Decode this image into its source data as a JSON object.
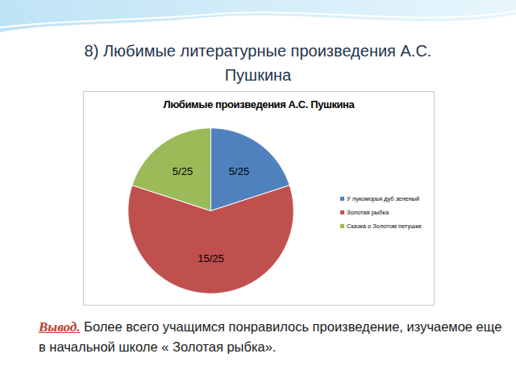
{
  "heading": "8) Любимые литературные произведения А.С. Пушкина",
  "conclusion": {
    "label": "Вывод.",
    "text": "Более всего учащимся понравилось произведение, изучаемое еще в начальной школе « Золотая рыбка»."
  },
  "chart_data": {
    "type": "pie",
    "title": "Любимые произведения А.С. Пушкина",
    "categories": [
      "У лукоморья дуб зеленый",
      "Золотая рыбка",
      "Сказка о Золотом петушке"
    ],
    "values": [
      5,
      15,
      5
    ],
    "value_labels": [
      "5/25",
      "15/25",
      "5/25"
    ],
    "colors": [
      "#4f81bd",
      "#c0504d",
      "#9bbb59"
    ],
    "data_labels": true,
    "legend": "right"
  }
}
